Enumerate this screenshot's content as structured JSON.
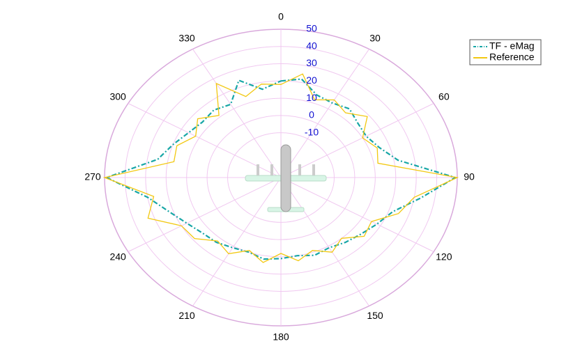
{
  "chart_data": {
    "type": "polar",
    "theta": [
      0,
      10,
      20,
      30,
      40,
      50,
      60,
      70,
      80,
      90,
      100,
      110,
      120,
      130,
      140,
      150,
      160,
      170,
      180,
      190,
      200,
      210,
      220,
      230,
      240,
      250,
      260,
      270,
      280,
      290,
      300,
      310,
      320,
      330,
      340,
      350
    ],
    "series": [
      {
        "name": "TF - eMag",
        "color": "#17a6a6",
        "dash": "7,3,2,3",
        "values": [
          20,
          22,
          15,
          14,
          16,
          13,
          12,
          15,
          22,
          49,
          33,
          22,
          18,
          15,
          13,
          11,
          12,
          10,
          11,
          12,
          10,
          11,
          13,
          14,
          17,
          22,
          30,
          49,
          25,
          20,
          16,
          14,
          15,
          13,
          24,
          16
        ]
      },
      {
        "name": "Reference",
        "color": "#f2c811",
        "dash": "none",
        "values": [
          18,
          25,
          12,
          16,
          13,
          19,
          10,
          14,
          12,
          50,
          30,
          25,
          15,
          17,
          10,
          14,
          9,
          13,
          8,
          14,
          9,
          15,
          12,
          19,
          20,
          33,
          27,
          50,
          17,
          18,
          12,
          17,
          11,
          27,
          14,
          19
        ]
      }
    ],
    "rlim": [
      -36,
      50
    ],
    "rticks": [
      -10,
      0,
      10,
      20,
      30,
      40,
      50
    ],
    "thetaticks": [
      0,
      30,
      60,
      90,
      120,
      150,
      180,
      210,
      240,
      270,
      300,
      330
    ],
    "grid": true,
    "legend": "upper right"
  }
}
